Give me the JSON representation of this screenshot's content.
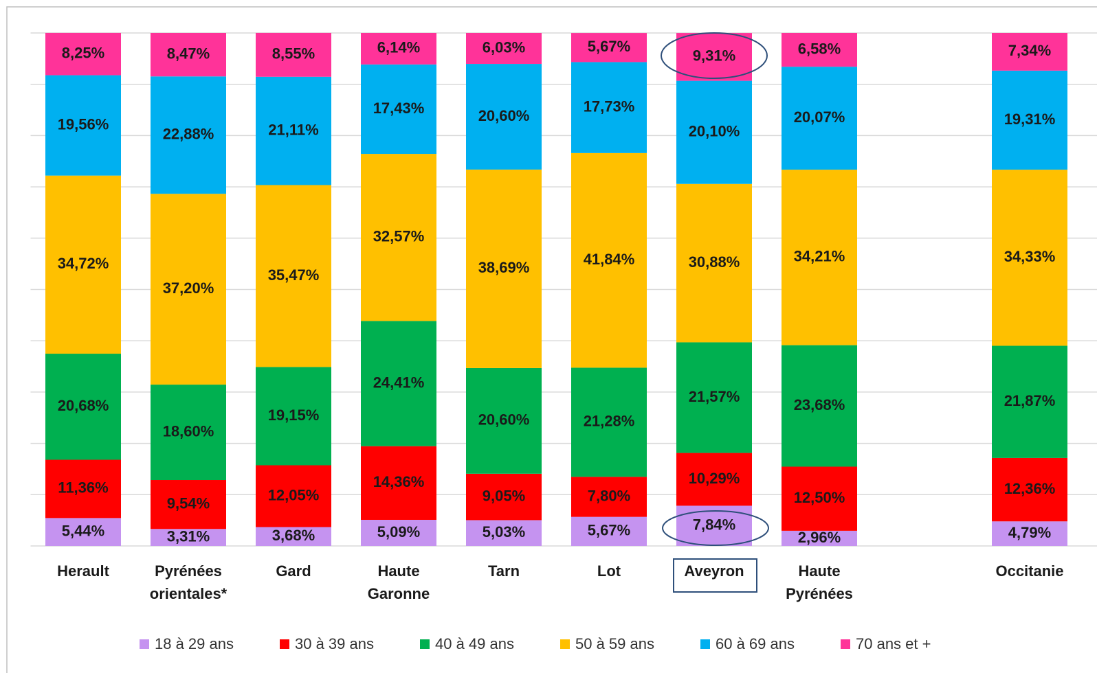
{
  "chart_data": {
    "type": "stacked_bar",
    "categories": [
      "Herault",
      "Pyrénées orientales*",
      "Gard",
      "Haute Garonne",
      "Tarn",
      "Lot",
      "Aveyron",
      "Haute Pyrénées",
      null,
      "Occitanie"
    ],
    "series": [
      {
        "name": "18 à 29 ans",
        "color": "#c593f0",
        "values": [
          5.44,
          3.31,
          3.68,
          5.09,
          5.03,
          5.67,
          7.84,
          2.96,
          null,
          4.79
        ],
        "value_labels": [
          "5,44%",
          "3,31%",
          "3,68%",
          "5,09%",
          "5,03%",
          "5,67%",
          "7,84%",
          "2,96%",
          null,
          "4,79%"
        ]
      },
      {
        "name": "30 à 39 ans",
        "color": "#ff0000",
        "values": [
          11.36,
          9.54,
          12.05,
          14.36,
          9.05,
          7.8,
          10.29,
          12.5,
          null,
          12.36
        ],
        "value_labels": [
          "11,36%",
          "9,54%",
          "12,05%",
          "14,36%",
          "9,05%",
          "7,80%",
          "10,29%",
          "12,50%",
          null,
          "12,36%"
        ]
      },
      {
        "name": "40 à 49 ans",
        "color": "#00b050",
        "values": [
          20.68,
          18.6,
          19.15,
          24.41,
          20.6,
          21.28,
          21.57,
          23.68,
          null,
          21.87
        ],
        "value_labels": [
          "20,68%",
          "18,60%",
          "19,15%",
          "24,41%",
          "20,60%",
          "21,28%",
          "21,57%",
          "23,68%",
          null,
          "21,87%"
        ]
      },
      {
        "name": "50 à 59 ans",
        "color": "#ffc000",
        "values": [
          34.72,
          37.2,
          35.47,
          32.57,
          38.69,
          41.84,
          30.88,
          34.21,
          null,
          34.33
        ],
        "value_labels": [
          "34,72%",
          "37,20%",
          "35,47%",
          "32,57%",
          "38,69%",
          "41,84%",
          "30,88%",
          "34,21%",
          null,
          "34,33%"
        ]
      },
      {
        "name": "60 à 69 ans",
        "color": "#00b0f0",
        "values": [
          19.56,
          22.88,
          21.11,
          17.43,
          20.6,
          17.73,
          20.1,
          20.07,
          null,
          19.31
        ],
        "value_labels": [
          "19,56%",
          "22,88%",
          "21,11%",
          "17,43%",
          "20,60%",
          "17,73%",
          "20,10%",
          "20,07%",
          null,
          "19,31%"
        ]
      },
      {
        "name": "70 ans et +",
        "color": "#ff3399",
        "values": [
          8.25,
          8.47,
          8.55,
          6.14,
          6.03,
          5.67,
          9.31,
          6.58,
          null,
          7.34
        ],
        "value_labels": [
          "8,25%",
          "8,47%",
          "8,55%",
          "6,14%",
          "6,03%",
          "5,67%",
          "9,31%",
          "6,58%",
          null,
          "7,34%"
        ]
      }
    ],
    "ylim": [
      0,
      100
    ],
    "yticks": [
      0,
      10,
      20,
      30,
      40,
      50,
      60,
      70,
      80,
      90,
      100
    ],
    "grid": true
  }
}
